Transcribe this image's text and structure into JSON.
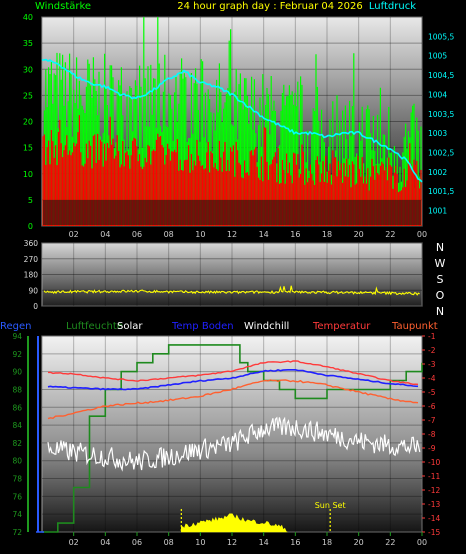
{
  "header": {
    "left_label": "Windstärke",
    "title": "24 hour graph day : Februar 04 2026",
    "right_label": "Luftdruck"
  },
  "legend": [
    {
      "label": "Regen",
      "color": "#2a5aff"
    },
    {
      "label": "Luftfeuchte",
      "color": "#1e8a1e"
    },
    {
      "label": "Solar",
      "color": "#ffffff"
    },
    {
      "label": "Temp Boden",
      "color": "#2020ff"
    },
    {
      "label": "Windchill",
      "color": "#ffffff"
    },
    {
      "label": "Temperatur",
      "color": "#ff3a3a"
    },
    {
      "label": "Taupunkt",
      "color": "#ff6030"
    }
  ],
  "chart_data": [
    {
      "type": "line",
      "title": "24 hour graph day : Februar 04 2026",
      "x_ticks": [
        "02",
        "04",
        "06",
        "08",
        "10",
        "12",
        "14",
        "16",
        "18",
        "20",
        "22",
        "00"
      ],
      "xlim": [
        0,
        24
      ],
      "ylabel": "Windstärke",
      "ylim": [
        0,
        40
      ],
      "y_ticks": [
        0,
        5,
        10,
        15,
        20,
        25,
        30,
        35,
        40
      ],
      "y2label": "Luftdruck",
      "y2lim": [
        1000.6,
        1006.0
      ],
      "y2_ticks": [
        "1001",
        "1001,5",
        "1002",
        "1002,5",
        "1003",
        "1003,5",
        "1004",
        "1004,5",
        "1005",
        "1005,5"
      ],
      "grid": true,
      "series": [
        {
          "name": "Windböen",
          "color": "#00ff00",
          "axis": "left",
          "x": [
            0,
            2,
            4,
            6,
            8,
            10,
            12,
            14,
            16,
            18,
            20,
            22,
            24
          ],
          "y": [
            26,
            25,
            24,
            23,
            25,
            24,
            22,
            21,
            19,
            18,
            17,
            16,
            14
          ]
        },
        {
          "name": "Windgeschwindigkeit",
          "color": "#ff0000",
          "axis": "left",
          "x": [
            0,
            2,
            4,
            6,
            8,
            10,
            12,
            14,
            16,
            18,
            20,
            22,
            24
          ],
          "y": [
            15,
            15,
            14,
            14,
            14,
            13,
            13,
            12,
            11,
            11,
            10,
            10,
            9
          ]
        },
        {
          "name": "Luftdruck",
          "color": "#00ffff",
          "axis": "right",
          "x": [
            0,
            1,
            2,
            3,
            4,
            5,
            6,
            7,
            8,
            9,
            10,
            11,
            12,
            13,
            14,
            15,
            16,
            17,
            18,
            19,
            20,
            21,
            22,
            23,
            24
          ],
          "y": [
            1004.9,
            1004.8,
            1004.5,
            1004.3,
            1004.2,
            1004.0,
            1003.9,
            1004.1,
            1004.4,
            1004.6,
            1004.3,
            1004.2,
            1004.0,
            1003.7,
            1003.4,
            1003.2,
            1003.0,
            1003.0,
            1002.9,
            1003.0,
            1003.0,
            1002.8,
            1002.6,
            1002.3,
            1001.7
          ]
        }
      ]
    },
    {
      "type": "line",
      "xlim": [
        0,
        24
      ],
      "ylim": [
        0,
        360
      ],
      "y_ticks": [
        0,
        90,
        180,
        270,
        360
      ],
      "y2_ticks": [
        "N",
        "W",
        "S",
        "O",
        "N"
      ],
      "grid": true,
      "series": [
        {
          "name": "Windrichtung",
          "color": "#ffff00",
          "x": [
            0,
            3,
            6,
            9,
            12,
            15,
            18,
            21,
            24
          ],
          "y": [
            80,
            82,
            85,
            80,
            78,
            80,
            78,
            75,
            70
          ]
        }
      ]
    },
    {
      "type": "line",
      "xlim": [
        0,
        24
      ],
      "x_ticks": [
        "02",
        "04",
        "06",
        "08",
        "10",
        "12",
        "14",
        "16",
        "18",
        "20",
        "22",
        "00"
      ],
      "ylim": [
        72,
        94
      ],
      "y_ticks": [
        72,
        74,
        76,
        78,
        80,
        82,
        84,
        86,
        88,
        90,
        92,
        94
      ],
      "y2lim": [
        -15,
        -1
      ],
      "y2_ticks": [
        -1,
        -2,
        -3,
        -4,
        -5,
        -6,
        -7,
        -8,
        -9,
        -10,
        -11,
        -12,
        -13,
        -14,
        -15
      ],
      "annotations": [
        "Sun Set"
      ],
      "grid": true,
      "series": [
        {
          "name": "Luftfeuchte",
          "color": "#1e8a1e",
          "axis": "left",
          "x": [
            0,
            1,
            2,
            3,
            4,
            5,
            6,
            7,
            8,
            9,
            10,
            11,
            12,
            12.5,
            13,
            14,
            15,
            16,
            17,
            18,
            19,
            20,
            21,
            22,
            23,
            24
          ],
          "y": [
            72,
            73,
            77,
            85,
            88,
            90,
            91,
            92,
            93,
            93,
            93,
            93,
            93,
            91,
            90,
            89,
            88,
            87,
            87,
            88,
            88,
            88,
            88,
            89,
            90,
            91
          ]
        },
        {
          "name": "Temperatur",
          "color": "#ff3a3a",
          "axis": "right",
          "x": [
            0,
            2,
            4,
            6,
            8,
            10,
            12,
            14,
            16,
            18,
            20,
            22,
            24
          ],
          "y": [
            -3.6,
            -3.7,
            -4.0,
            -4.2,
            -4.0,
            -3.8,
            -3.5,
            -2.9,
            -2.8,
            -3.2,
            -3.7,
            -4.2,
            -4.5
          ]
        },
        {
          "name": "Temp Boden",
          "color": "#2020ff",
          "axis": "right",
          "x": [
            0,
            2,
            4,
            6,
            8,
            10,
            12,
            14,
            16,
            18,
            20,
            22,
            24
          ],
          "y": [
            -4.6,
            -4.7,
            -4.8,
            -4.8,
            -4.5,
            -4.2,
            -4.0,
            -3.5,
            -3.4,
            -3.8,
            -4.1,
            -4.4,
            -4.6
          ]
        },
        {
          "name": "Taupunkt",
          "color": "#ff6030",
          "axis": "right",
          "x": [
            0,
            2,
            4,
            6,
            8,
            10,
            12,
            14,
            16,
            18,
            20,
            22,
            24
          ],
          "y": [
            -7.0,
            -6.5,
            -6.0,
            -5.8,
            -5.6,
            -5.3,
            -4.8,
            -4.2,
            -4.2,
            -4.5,
            -5.0,
            -5.5,
            -5.8
          ]
        },
        {
          "name": "Windchill",
          "color": "#ffffff",
          "axis": "right",
          "x": [
            0,
            2,
            4,
            6,
            8,
            10,
            12,
            14,
            16,
            18,
            20,
            22,
            24
          ],
          "y": [
            -9.0,
            -9.3,
            -9.6,
            -10.0,
            -9.6,
            -9.1,
            -8.7,
            -7.6,
            -7.5,
            -8.0,
            -8.5,
            -8.8,
            -9.0
          ]
        },
        {
          "name": "Solar",
          "color": "#ffff00",
          "axis": "right",
          "x": [
            8.8,
            10,
            11,
            12,
            13,
            14,
            15,
            15.5
          ],
          "y": [
            -14.8,
            -14.5,
            -14.3,
            -14.0,
            -14.4,
            -14.5,
            -14.8,
            -15
          ]
        }
      ]
    }
  ]
}
